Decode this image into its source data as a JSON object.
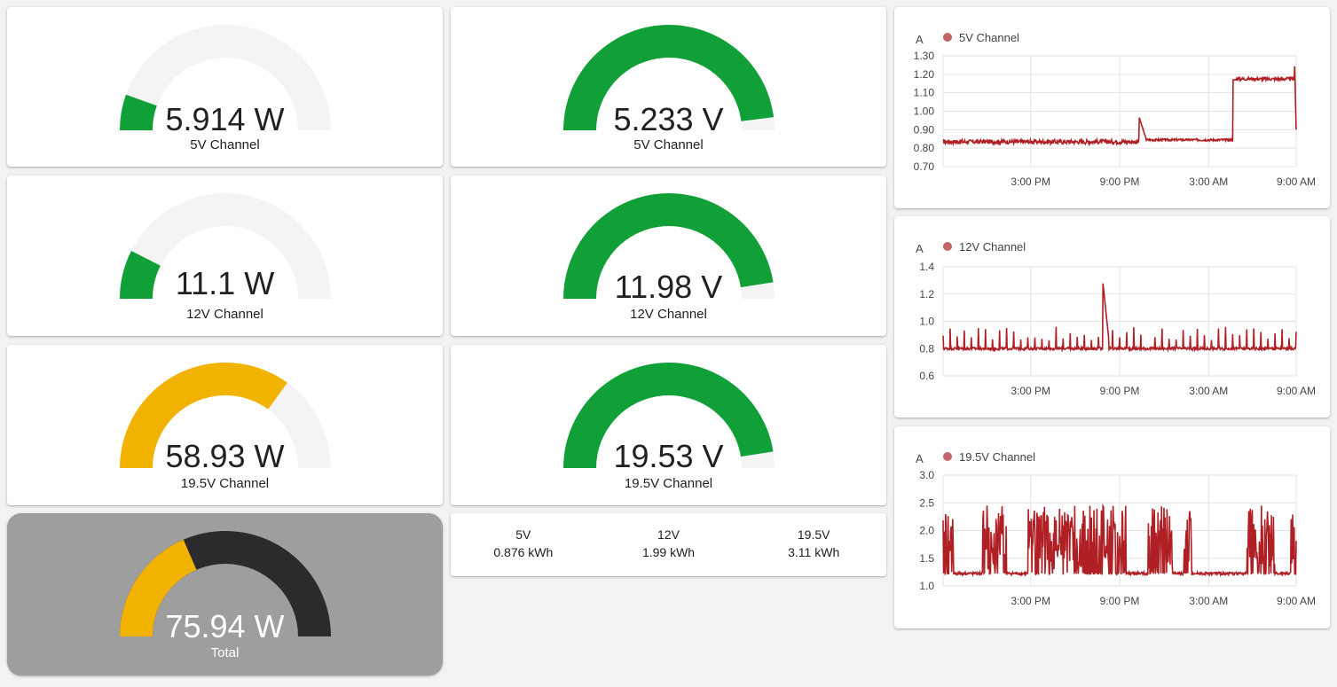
{
  "gauges": [
    {
      "value_text": "5.914 W",
      "label": "5V Channel",
      "level": 0.11,
      "color": "#11a037"
    },
    {
      "value_text": "5.233 V",
      "label": "5V Channel",
      "level": 0.96,
      "color": "#11a037"
    },
    {
      "value_text": "11.1 W",
      "label": "12V Channel",
      "level": 0.15,
      "color": "#11a037"
    },
    {
      "value_text": "11.98 V",
      "label": "12V Channel",
      "level": 0.95,
      "color": "#11a037"
    },
    {
      "value_text": "58.93 W",
      "label": "19.5V Channel",
      "level": 0.7,
      "color": "#f2b300"
    },
    {
      "value_text": "19.53 V",
      "label": "19.5V Channel",
      "level": 0.95,
      "color": "#11a037"
    },
    {
      "value_text": "75.94 W",
      "label": "Total",
      "level": 0.37,
      "color": "#f2b300"
    }
  ],
  "energy": [
    {
      "channel": "5V",
      "value": "0.876 kWh"
    },
    {
      "channel": "12V",
      "value": "1.99 kWh"
    },
    {
      "channel": "19.5V",
      "value": "3.11 kWh"
    }
  ],
  "colors": {
    "gauge_track": "#f4f4f4",
    "total_track": "#2b2b2d",
    "series_line": "#b01f24",
    "legend_dot": "#c36469"
  },
  "chart_data": [
    {
      "type": "line",
      "unit_label": "A",
      "series": [
        {
          "name": "5V Channel"
        }
      ],
      "ylim": [
        0.7,
        1.3
      ],
      "yticks": [
        "1.30",
        "1.20",
        "1.10",
        "1.00",
        "0.90",
        "0.80",
        "0.70"
      ],
      "xticks": [
        "3:00 PM",
        "9:00 PM",
        "3:00 AM",
        "9:00 AM"
      ],
      "grid": true,
      "segments": [
        {
          "from": 0.0,
          "to": 0.56,
          "base": 0.835,
          "noise": 0.012
        },
        {
          "from": 0.56,
          "to": 0.575,
          "base": 0.97,
          "noise": 0.0
        },
        {
          "from": 0.575,
          "to": 0.82,
          "base": 0.845,
          "noise": 0.006
        },
        {
          "from": 0.82,
          "to": 0.83,
          "base": 1.17,
          "noise": 0.0
        },
        {
          "from": 0.83,
          "to": 1.0,
          "base": 1.175,
          "noise": 0.008
        }
      ]
    },
    {
      "type": "line",
      "unit_label": "A",
      "series": [
        {
          "name": "12V Channel"
        }
      ],
      "ylim": [
        0.6,
        1.4
      ],
      "yticks": [
        "1.4",
        "1.2",
        "1.0",
        "0.8",
        "0.6"
      ],
      "xticks": [
        "3:00 PM",
        "9:00 PM",
        "3:00 AM",
        "9:00 AM"
      ],
      "grid": true,
      "baseline": 0.8,
      "spike_value": 1.3
    },
    {
      "type": "line",
      "unit_label": "A",
      "series": [
        {
          "name": "19.5V Channel"
        }
      ],
      "ylim": [
        1.0,
        3.0
      ],
      "yticks": [
        "3.0",
        "2.5",
        "2.0",
        "1.5",
        "1.0"
      ],
      "xticks": [
        "3:00 PM",
        "9:00 PM",
        "3:00 AM",
        "9:00 AM"
      ],
      "grid": true,
      "baseline": 1.2,
      "peak": 2.5
    }
  ]
}
